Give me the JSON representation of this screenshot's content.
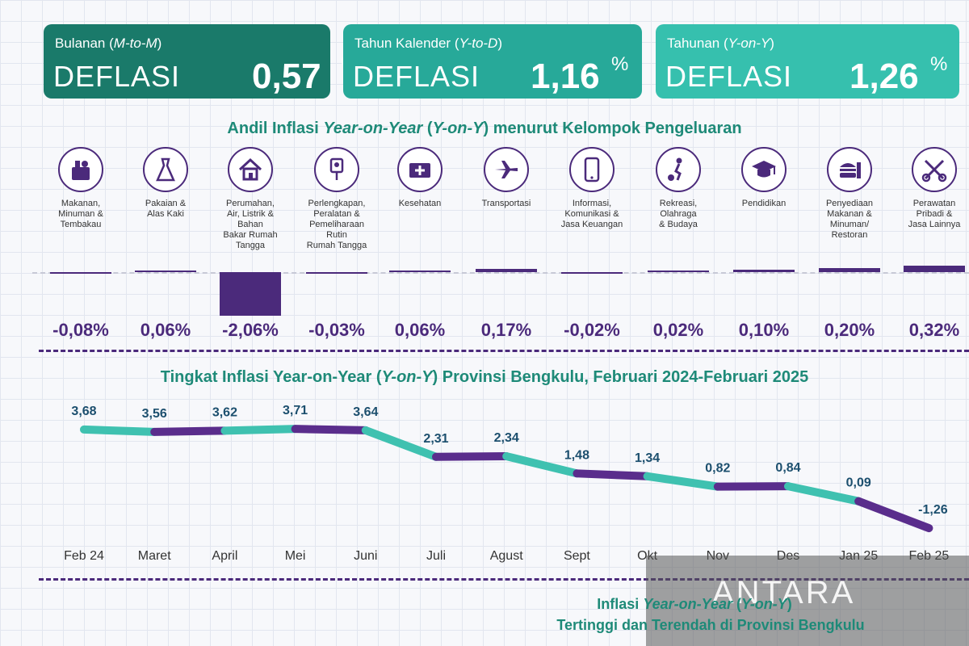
{
  "cards": [
    {
      "sub_prefix": "Bulanan (",
      "sub_italic": "M-to-M",
      "sub_suffix": ")",
      "kind": "DEFLASI",
      "value": "0,57",
      "unit": "%",
      "color": "#1a7a6a"
    },
    {
      "sub_prefix": "Tahun Kalender (",
      "sub_italic": "Y-to-D",
      "sub_suffix": ")",
      "kind": "DEFLASI",
      "value": "1,16",
      "unit": "%",
      "color": "#27a999"
    },
    {
      "sub_prefix": "Tahunan (",
      "sub_italic": "Y-on-Y",
      "sub_suffix": ")",
      "kind": "DEFLASI",
      "value": "1,26",
      "unit": "%",
      "color": "#36c0ae"
    }
  ],
  "andil": {
    "title_prefix": "Andil Inflasi ",
    "title_italic1": "Year-on-Year",
    "title_mid": " (",
    "title_italic2": "Y-on-Y",
    "title_suffix": ") menurut Kelompok Pengeluaran"
  },
  "categories": [
    {
      "icon": "food-basket-icon",
      "label": "Makanan,\nMinuman &\nTembakau"
    },
    {
      "icon": "dress-icon",
      "label": "Pakaian &\nAlas Kaki"
    },
    {
      "icon": "house-icon",
      "label": "Perumahan,\nAir, Listrik &\nBahan\nBakar Rumah\nTangga"
    },
    {
      "icon": "plug-icon",
      "label": "Perlengkapan,\nPeralatan &\nPemeliharaan\nRutin\nRumah Tangga"
    },
    {
      "icon": "first-aid-icon",
      "label": "Kesehatan"
    },
    {
      "icon": "airplane-icon",
      "label": "Transportasi"
    },
    {
      "icon": "smartphone-icon",
      "label": "Informasi,\nKomunikasi &\nJasa Keuangan"
    },
    {
      "icon": "football-player-icon",
      "label": "Rekreasi,\nOlahraga\n& Budaya"
    },
    {
      "icon": "graduation-cap-icon",
      "label": "Pendidikan"
    },
    {
      "icon": "fast-food-icon",
      "label": "Penyediaan\nMakanan &\nMinuman/\nRestoran"
    },
    {
      "icon": "scissors-comb-icon",
      "label": "Perawatan\nPribadi &\nJasa Lainnya"
    }
  ],
  "trend": {
    "title_prefix": "Tingkat Inflasi Year-on-Year (",
    "title_italic": "Y-on-Y",
    "title_suffix": ") Provinsi Bengkulu, Februari 2024-Februari 2025"
  },
  "chart_data": [
    {
      "type": "bar",
      "categories": [
        "Makanan, Minuman & Tembakau",
        "Pakaian & Alas Kaki",
        "Perumahan, Air, Listrik & Bahan Bakar Rumah Tangga",
        "Perlengkapan, Peralatan & Pemeliharaan Rutin Rumah Tangga",
        "Kesehatan",
        "Transportasi",
        "Informasi, Komunikasi & Jasa Keuangan",
        "Rekreasi, Olahraga & Budaya",
        "Pendidikan",
        "Penyediaan Makanan & Minuman/ Restoran",
        "Perawatan Pribadi & Jasa Lainnya"
      ],
      "values": [
        -0.08,
        0.06,
        -2.06,
        -0.03,
        0.06,
        0.17,
        -0.02,
        0.02,
        0.1,
        0.2,
        0.32
      ],
      "value_labels": [
        "-0,08%",
        "0,06%",
        "-2,06%",
        "-0,03%",
        "0,06%",
        "0,17%",
        "-0,02%",
        "0,02%",
        "0,10%",
        "0,20%",
        "0,32%"
      ],
      "bar_color": "#4b2a7b"
    },
    {
      "type": "line",
      "title": "Tingkat Inflasi Year-on-Year (Y-on-Y) Provinsi Bengkulu, Februari 2024-Februari 2025",
      "x": [
        "Feb 24",
        "Maret",
        "April",
        "Mei",
        "Juni",
        "Juli",
        "Agust",
        "Sept",
        "Okt",
        "Nov",
        "Des",
        "Jan 25",
        "Feb 25"
      ],
      "y": [
        3.68,
        3.56,
        3.62,
        3.71,
        3.64,
        2.31,
        2.34,
        1.48,
        1.34,
        0.82,
        0.84,
        0.09,
        -1.26
      ],
      "y_labels": [
        "3,68",
        "3,56",
        "3,62",
        "3,71",
        "3,64",
        "2,31",
        "2,34",
        "1,48",
        "1,34",
        "0,82",
        "0,84",
        "0,09",
        "-1,26"
      ],
      "ylim": [
        -1.5,
        4
      ],
      "colors": [
        "#3fc1b0",
        "#5a2d8c"
      ]
    }
  ],
  "watermark": {
    "text": "ANTARA"
  },
  "bottom": {
    "line1_prefix": "Inflasi ",
    "line1_italic": "Year-on-Year",
    "line1_mid": " (",
    "line1_italic2": "Y-on-Y",
    "line1_suffix": ")",
    "line2": "Tertinggi dan Terendah di Provinsi Bengkulu"
  }
}
